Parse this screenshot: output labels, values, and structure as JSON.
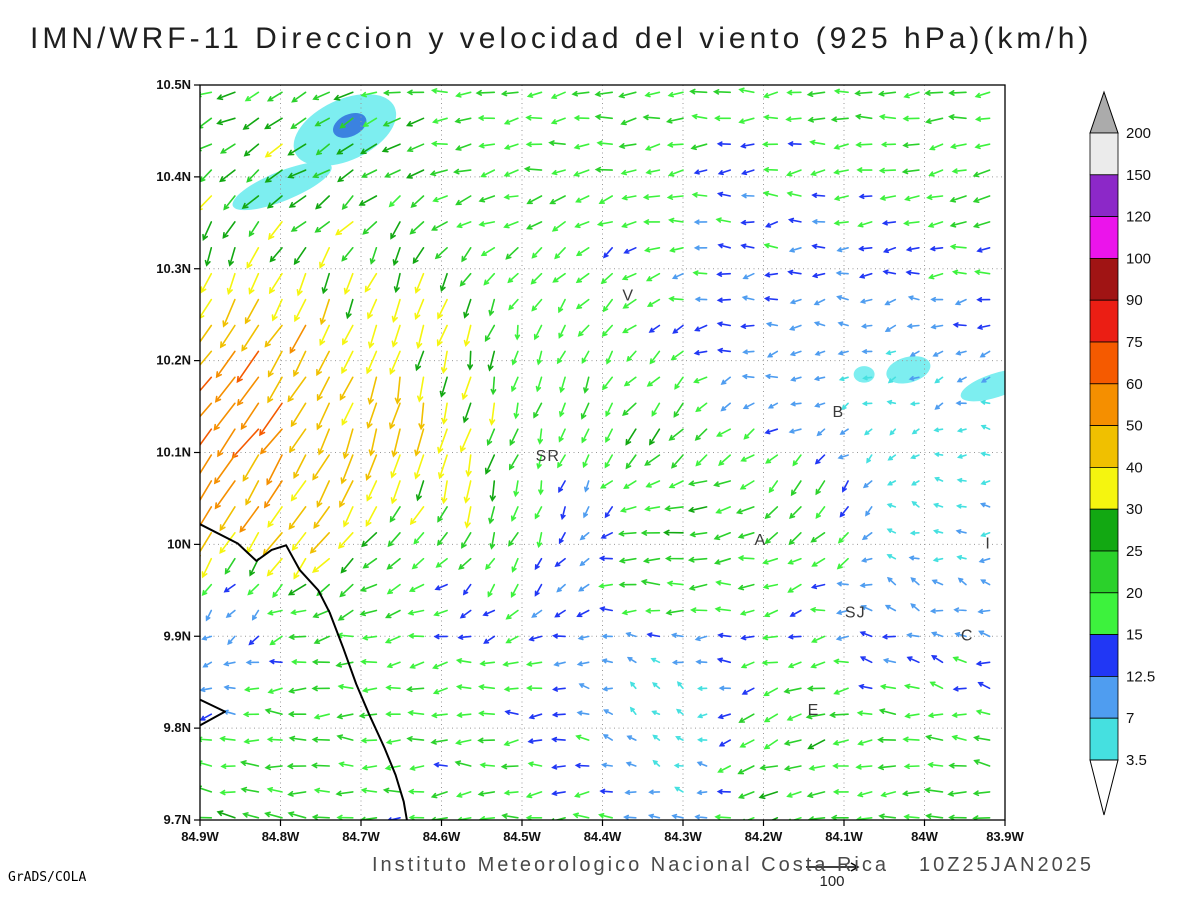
{
  "title": "IMN/WRF-11 Direccion y velocidad del viento (925 hPa)(km/h)",
  "footer": {
    "institute": "Instituto Meteorologico Nacional Costa Rica",
    "datetime": "10Z25JAN2025",
    "credit": "GrADS/COLA"
  },
  "reference": {
    "label": "100"
  },
  "chart_data": {
    "type": "vector_field",
    "title": "IMN/WRF-11 Direccion y velocidad del viento (925 hPa)(km/h)",
    "units": "km/h",
    "level": "925 hPa",
    "lon_range": [
      84.9,
      83.9
    ],
    "lat_range": [
      9.7,
      10.5
    ],
    "x_axis": {
      "values": [
        84.9,
        84.8,
        84.7,
        84.6,
        84.5,
        84.4,
        84.3,
        84.2,
        84.1,
        84.0,
        83.9
      ],
      "labels": [
        "84.9W",
        "84.8W",
        "84.7W",
        "84.6W",
        "84.5W",
        "84.4W",
        "84.3W",
        "84.2W",
        "84.1W",
        "84W",
        "83.9W"
      ]
    },
    "y_axis": {
      "values": [
        10.5,
        10.4,
        10.3,
        10.2,
        10.1,
        10.0,
        9.9,
        9.8,
        9.7
      ],
      "labels": [
        "10.5N",
        "10.4N",
        "10.3N",
        "10.2N",
        "10.1N",
        "10N",
        "9.9N",
        "9.8N",
        "9.7N"
      ]
    },
    "colorbar": {
      "levels": [
        3.5,
        7,
        12.5,
        15,
        20,
        25,
        30,
        40,
        50,
        60,
        75,
        90,
        100,
        120,
        150,
        200
      ],
      "labels": [
        "200",
        "150",
        "120",
        "100",
        "90",
        "75",
        "60",
        "50",
        "40",
        "30",
        "25",
        "20",
        "15",
        "12.5",
        "7",
        "3.5"
      ],
      "band_colors": [
        "#45e0e0",
        "#4f9df0",
        "#2137f5",
        "#3df23d",
        "#2bd12b",
        "#12a812",
        "#f5f50f",
        "#f0c000",
        "#f58f00",
        "#f55a00",
        "#eb1e14",
        "#a01414",
        "#eb14eb",
        "#8c28c8",
        "#ebebeb"
      ],
      "under_color": "#ffffff",
      "over_color": "#ababab"
    },
    "calm_color": "#8833cc",
    "stations": [
      {
        "label": "V",
        "lon": 84.368,
        "lat": 10.271
      },
      {
        "label": "B",
        "lon": 84.107,
        "lat": 10.144
      },
      {
        "label": "SR",
        "lon": 84.468,
        "lat": 10.096
      },
      {
        "label": "A",
        "lon": 84.204,
        "lat": 10.005
      },
      {
        "label": "SJ",
        "lon": 84.086,
        "lat": 9.926
      },
      {
        "label": "C",
        "lon": 83.947,
        "lat": 9.901
      },
      {
        "label": "E",
        "lon": 84.138,
        "lat": 9.82
      },
      {
        "label": "I",
        "lon": 83.921,
        "lat": 10.001
      }
    ],
    "shaded_patches": [
      {
        "lon": 84.72,
        "lat": 10.451,
        "rx": 0.068,
        "ry": 0.033,
        "rot": -25,
        "color": "#7deef0"
      },
      {
        "lon": 84.714,
        "lat": 10.456,
        "rx": 0.022,
        "ry": 0.012,
        "rot": -25,
        "color": "#3b82e0"
      },
      {
        "lon": 84.798,
        "lat": 10.39,
        "rx": 0.066,
        "ry": 0.016,
        "rot": -22,
        "color": "#7deef0"
      },
      {
        "lon": 84.075,
        "lat": 10.185,
        "rx": 0.013,
        "ry": 0.009,
        "rot": 0,
        "color": "#7deef0"
      },
      {
        "lon": 84.02,
        "lat": 10.19,
        "rx": 0.028,
        "ry": 0.014,
        "rot": -15,
        "color": "#7deef0"
      },
      {
        "lon": 83.912,
        "lat": 10.173,
        "rx": 0.045,
        "ry": 0.013,
        "rot": -18,
        "color": "#7deef0"
      }
    ],
    "coastline": [
      [
        [
          84.9,
          10.022
        ],
        [
          84.853,
          10.001
        ],
        [
          84.83,
          9.982
        ],
        [
          84.811,
          9.994
        ],
        [
          84.793,
          9.999
        ],
        [
          84.776,
          9.972
        ],
        [
          84.753,
          9.95
        ],
        [
          84.739,
          9.926
        ],
        [
          84.722,
          9.887
        ],
        [
          84.706,
          9.848
        ],
        [
          84.69,
          9.815
        ],
        [
          84.671,
          9.779
        ],
        [
          84.657,
          9.749
        ],
        [
          84.647,
          9.72
        ],
        [
          84.643,
          9.7
        ]
      ],
      [
        [
          84.9,
          9.831
        ],
        [
          84.869,
          9.818
        ],
        [
          84.9,
          9.803
        ]
      ]
    ],
    "grid": {
      "lon0": 84.886,
      "dlon": 0.0293,
      "cols": 34,
      "lat0": 10.492,
      "dlat": 0.0282,
      "rows": 29
    },
    "flow_regions": [
      {
        "lon": 84.9,
        "lat": 10.48,
        "dir": 205,
        "spd": 24,
        "sig": 0.09
      },
      {
        "lon": 84.6,
        "lat": 10.47,
        "dir": 185,
        "spd": 22,
        "sig": 0.12
      },
      {
        "lon": 84.25,
        "lat": 10.46,
        "dir": 183,
        "spd": 20,
        "sig": 0.14
      },
      {
        "lon": 83.95,
        "lat": 10.45,
        "dir": 190,
        "spd": 20,
        "sig": 0.1
      },
      {
        "lon": 84.74,
        "lat": 10.41,
        "dir": 218,
        "spd": 30,
        "sig": 0.06
      },
      {
        "lon": 84.88,
        "lat": 10.32,
        "dir": 255,
        "spd": 35,
        "sig": 0.06
      },
      {
        "lon": 84.83,
        "lat": 10.17,
        "dir": 232,
        "spd": 62,
        "sig": 0.065
      },
      {
        "lon": 84.87,
        "lat": 10.07,
        "dir": 237,
        "spd": 55,
        "sig": 0.06
      },
      {
        "lon": 84.74,
        "lat": 10.04,
        "dir": 242,
        "spd": 45,
        "sig": 0.06
      },
      {
        "lon": 84.62,
        "lat": 10.2,
        "dir": 262,
        "spd": 40,
        "sig": 0.08
      },
      {
        "lon": 84.54,
        "lat": 10.04,
        "dir": 255,
        "spd": 38,
        "sig": 0.055
      },
      {
        "lon": 84.47,
        "lat": 10.23,
        "dir": 268,
        "spd": 13,
        "sig": 0.05
      },
      {
        "lon": 84.41,
        "lat": 10.3,
        "dir": 235,
        "spd": 24,
        "sig": 0.05
      },
      {
        "lon": 84.34,
        "lat": 10.14,
        "dir": 237,
        "spd": 26,
        "sig": 0.065
      },
      {
        "lon": 84.24,
        "lat": 10.26,
        "dir": 183,
        "spd": 10,
        "sig": 0.08
      },
      {
        "lon": 84.06,
        "lat": 10.26,
        "dir": 190,
        "spd": 8,
        "sig": 0.07
      },
      {
        "lon": 83.92,
        "lat": 10.28,
        "dir": 184,
        "spd": 17,
        "sig": 0.06
      },
      {
        "lon": 84.1,
        "lat": 10.12,
        "dir": 205,
        "spd": 3,
        "sig": 0.06
      },
      {
        "lon": 84.0,
        "lat": 10.06,
        "dir": 165,
        "spd": 4,
        "sig": 0.055
      },
      {
        "lon": 84.3,
        "lat": 10.0,
        "dir": 177,
        "spd": 26,
        "sig": 0.06
      },
      {
        "lon": 84.14,
        "lat": 10.05,
        "dir": 228,
        "spd": 30,
        "sig": 0.05
      },
      {
        "lon": 84.45,
        "lat": 10.05,
        "dir": 280,
        "spd": 4,
        "sig": 0.05
      },
      {
        "lon": 84.56,
        "lat": 9.97,
        "dir": 212,
        "spd": 12,
        "sig": 0.06
      },
      {
        "lon": 84.7,
        "lat": 9.9,
        "dir": 186,
        "spd": 20,
        "sig": 0.08
      },
      {
        "lon": 84.84,
        "lat": 9.79,
        "dir": 174,
        "spd": 22,
        "sig": 0.08
      },
      {
        "lon": 84.6,
        "lat": 9.79,
        "dir": 181,
        "spd": 18,
        "sig": 0.08
      },
      {
        "lon": 84.33,
        "lat": 9.82,
        "dir": 140,
        "spd": 4,
        "sig": 0.06
      },
      {
        "lon": 84.15,
        "lat": 9.79,
        "dir": 203,
        "spd": 24,
        "sig": 0.055
      },
      {
        "lon": 83.95,
        "lat": 9.8,
        "dir": 172,
        "spd": 22,
        "sig": 0.07
      },
      {
        "lon": 84.0,
        "lat": 9.91,
        "dir": 152,
        "spd": 10,
        "sig": 0.06
      },
      {
        "lon": 84.2,
        "lat": 9.93,
        "dir": 186,
        "spd": 14,
        "sig": 0.05
      },
      {
        "lon": 84.05,
        "lat": 9.71,
        "dir": 184,
        "spd": 20,
        "sig": 0.08
      },
      {
        "lon": 84.5,
        "lat": 9.71,
        "dir": 184,
        "spd": 18,
        "sig": 0.09
      },
      {
        "lon": 84.86,
        "lat": 9.93,
        "dir": 252,
        "spd": 8,
        "sig": 0.05
      },
      {
        "lon": 84.9,
        "lat": 9.85,
        "dir": 262,
        "spd": 6,
        "sig": 0.05
      },
      {
        "lon": 84.68,
        "lat": 10.3,
        "dir": 252,
        "spd": 32,
        "sig": 0.06
      },
      {
        "lon": 84.2,
        "lat": 10.35,
        "dir": 184,
        "spd": 12,
        "sig": 0.08
      },
      {
        "lon": 84.45,
        "lat": 10.41,
        "dir": 196,
        "spd": 18,
        "sig": 0.08
      },
      {
        "lon": 83.9,
        "lat": 10.0,
        "dir": 180,
        "spd": 8,
        "sig": 0.06
      },
      {
        "lon": 83.91,
        "lat": 9.9,
        "dir": 162,
        "spd": 10,
        "sig": 0.06
      },
      {
        "lon": 84.47,
        "lat": 10.13,
        "dir": 250,
        "spd": 20,
        "sig": 0.05
      },
      {
        "lon": 83.95,
        "lat": 10.19,
        "dir": 195,
        "spd": 6,
        "sig": 0.05
      }
    ]
  }
}
